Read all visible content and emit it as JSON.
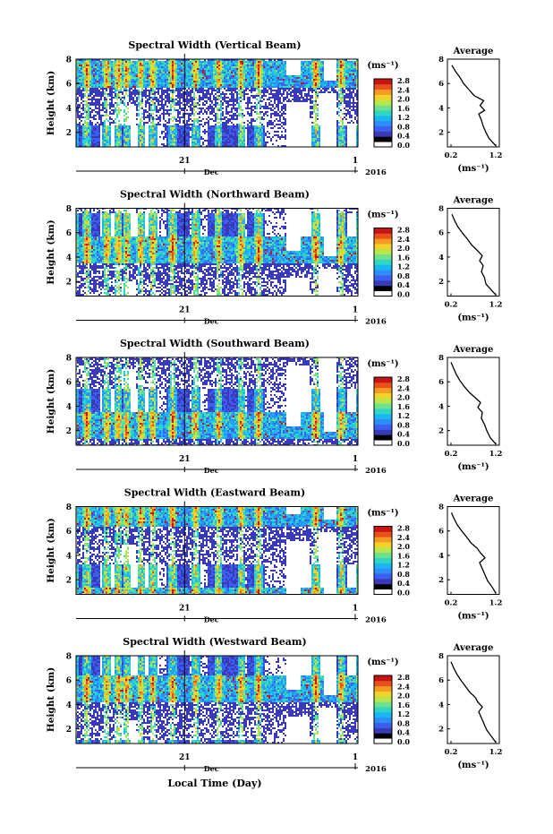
{
  "figure": {
    "xlabel": "Local Time (Day)",
    "month_label": "Dec",
    "year_label": "2016",
    "x_tick_labels": [
      "21",
      "1"
    ],
    "y_axis_label": "Height (km)",
    "y_tick_labels": [
      "2",
      "4",
      "6",
      "8"
    ],
    "colorbar_title": "(ms⁻¹)",
    "colorbar_ticks": [
      "0.0",
      "0.4",
      "0.8",
      "1.2",
      "1.6",
      "2.0",
      "2.4",
      "2.8"
    ],
    "colorbar_colors": [
      "#ffffff",
      "#000000",
      "#3a3ab8",
      "#3c5ff0",
      "#2e8ef7",
      "#19b7f2",
      "#2fd6c4",
      "#6fe08c",
      "#b8e64c",
      "#f2d32a",
      "#f59a22",
      "#e8501c",
      "#c81414"
    ],
    "avg_title": "Average",
    "avg_xlabel": "(ms⁻¹)",
    "avg_x_ticks": [
      "0.2",
      "1.2"
    ],
    "avg_y_ticks": [
      "2",
      "4",
      "6",
      "8"
    ]
  },
  "chart_data": [
    {
      "type": "heatmap",
      "title": "Spectral Width (Vertical Beam)",
      "ylabel": "Height (km)",
      "ylim": [
        0.8,
        8
      ],
      "colorbar": {
        "label": "(ms⁻¹)",
        "range": [
          0.0,
          2.8
        ]
      },
      "average_profile": {
        "title": "Average",
        "xlabel": "(ms⁻¹)",
        "xlim": [
          0.2,
          1.2
        ],
        "ylim": [
          0.8,
          8
        ],
        "height_km": [
          0.9,
          1.5,
          2.0,
          2.5,
          3.0,
          3.5,
          3.8,
          4.2,
          4.6,
          5.0,
          5.5,
          6.0,
          6.5,
          7.0,
          7.5
        ],
        "width_ms": [
          1.2,
          1.05,
          0.98,
          0.92,
          0.88,
          0.82,
          0.95,
          0.85,
          0.93,
          0.72,
          0.6,
          0.48,
          0.4,
          0.3,
          0.22
        ]
      }
    },
    {
      "type": "heatmap",
      "title": "Spectral Width (Northward Beam)",
      "ylabel": "Height (km)",
      "ylim": [
        0.8,
        8
      ],
      "colorbar": {
        "label": "(ms⁻¹)",
        "range": [
          0.0,
          2.8
        ]
      },
      "average_profile": {
        "title": "Average",
        "xlabel": "(ms⁻¹)",
        "xlim": [
          0.2,
          1.2
        ],
        "ylim": [
          0.8,
          8
        ],
        "height_km": [
          0.9,
          1.3,
          1.8,
          2.3,
          2.8,
          3.3,
          3.7,
          4.1,
          4.5,
          5.0,
          5.5,
          6.0,
          6.5,
          7.0,
          7.5
        ],
        "width_ms": [
          1.2,
          1.1,
          0.98,
          0.95,
          0.88,
          0.92,
          0.84,
          0.9,
          0.8,
          0.66,
          0.56,
          0.45,
          0.35,
          0.28,
          0.22
        ]
      }
    },
    {
      "type": "heatmap",
      "title": "Spectral Width (Southward Beam)",
      "ylabel": "Height (km)",
      "ylim": [
        0.8,
        8
      ],
      "colorbar": {
        "label": "(ms⁻¹)",
        "range": [
          0.0,
          2.8
        ]
      },
      "average_profile": {
        "title": "Average",
        "xlabel": "(ms⁻¹)",
        "xlim": [
          0.2,
          1.2
        ],
        "ylim": [
          0.8,
          8
        ],
        "height_km": [
          0.9,
          1.4,
          2.0,
          2.5,
          3.0,
          3.5,
          3.9,
          4.3,
          4.7,
          5.1,
          5.6,
          6.1,
          6.6,
          7.1,
          7.6
        ],
        "width_ms": [
          1.2,
          1.08,
          1.0,
          0.95,
          0.88,
          0.9,
          0.8,
          0.86,
          0.74,
          0.62,
          0.5,
          0.4,
          0.32,
          0.26,
          0.2
        ]
      }
    },
    {
      "type": "heatmap",
      "title": "Spectral Width (Eastward Beam)",
      "ylabel": "Height (km)",
      "ylim": [
        0.8,
        8
      ],
      "colorbar": {
        "label": "(ms⁻¹)",
        "range": [
          0.0,
          2.8
        ]
      },
      "average_profile": {
        "title": "Average",
        "xlabel": "(ms⁻¹)",
        "xlim": [
          0.2,
          1.2
        ],
        "ylim": [
          0.8,
          8
        ],
        "height_km": [
          0.9,
          1.4,
          1.9,
          2.4,
          2.9,
          3.4,
          3.8,
          4.2,
          4.6,
          5.0,
          5.5,
          6.0,
          6.5,
          7.0,
          7.5
        ],
        "width_ms": [
          1.2,
          1.12,
          1.02,
          0.96,
          0.9,
          0.84,
          0.96,
          0.86,
          0.78,
          0.65,
          0.55,
          0.44,
          0.34,
          0.27,
          0.21
        ]
      }
    },
    {
      "type": "heatmap",
      "title": "Spectral Width (Westward Beam)",
      "ylabel": "Height (km)",
      "ylim": [
        0.8,
        8
      ],
      "colorbar": {
        "label": "(ms⁻¹)",
        "range": [
          0.0,
          2.8
        ]
      },
      "average_profile": {
        "title": "Average",
        "xlabel": "(ms⁻¹)",
        "xlim": [
          0.2,
          1.2
        ],
        "ylim": [
          0.8,
          8
        ],
        "height_km": [
          0.9,
          1.4,
          1.9,
          2.4,
          2.9,
          3.4,
          3.8,
          4.2,
          4.6,
          5.0,
          5.5,
          6.0,
          6.5,
          7.0,
          7.5
        ],
        "width_ms": [
          1.2,
          1.1,
          1.0,
          0.94,
          0.88,
          0.82,
          0.9,
          0.8,
          0.74,
          0.62,
          0.52,
          0.42,
          0.33,
          0.26,
          0.2
        ]
      }
    }
  ]
}
